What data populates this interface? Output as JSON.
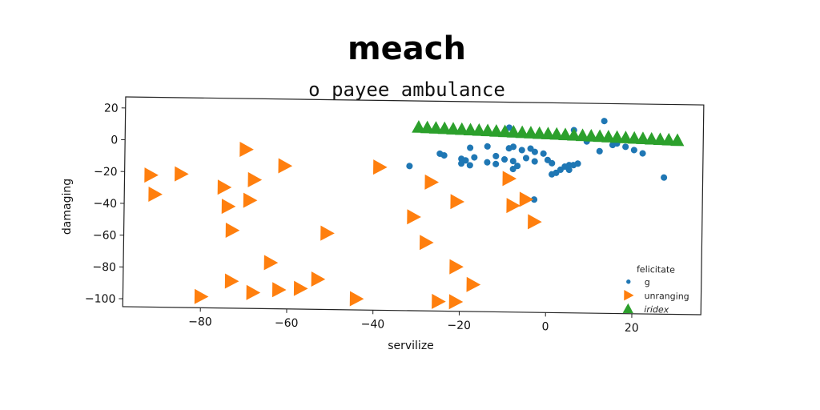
{
  "chart_data": {
    "type": "scatter",
    "title": "meach",
    "subtitle": "o payee ambulance",
    "xlabel": "servilize",
    "ylabel": "damaging",
    "xlim": [
      -98,
      36
    ],
    "ylim": [
      -105,
      27
    ],
    "xticks": [
      -80,
      -60,
      -40,
      -20,
      0,
      20
    ],
    "yticks": [
      20,
      0,
      -20,
      -40,
      -60,
      -80,
      -100
    ],
    "legend": {
      "title": "felicitate",
      "position": "lower-right"
    },
    "series": [
      {
        "name": "g",
        "marker": "circle",
        "color": "#1f77b4",
        "points": [
          [
            -32,
            -14
          ],
          [
            -25,
            -6
          ],
          [
            -24,
            -7
          ],
          [
            -20,
            -9
          ],
          [
            -20,
            -12
          ],
          [
            -18,
            -2
          ],
          [
            -19,
            -10
          ],
          [
            -18,
            -13
          ],
          [
            -17,
            -8
          ],
          [
            -14,
            -11
          ],
          [
            -12,
            -7
          ],
          [
            -12,
            -12
          ],
          [
            -10,
            -9
          ],
          [
            -9,
            -2
          ],
          [
            -8,
            -10
          ],
          [
            -8,
            -15
          ],
          [
            -7,
            -13
          ],
          [
            -6,
            -3
          ],
          [
            -5,
            -8
          ],
          [
            -4,
            -2
          ],
          [
            -3,
            -4
          ],
          [
            -3,
            -10
          ],
          [
            -1,
            -5
          ],
          [
            0,
            -9
          ],
          [
            1,
            -11
          ],
          [
            1,
            -18
          ],
          [
            2,
            -17
          ],
          [
            3,
            -15
          ],
          [
            4,
            -13
          ],
          [
            5,
            -12
          ],
          [
            5,
            -15
          ],
          [
            6,
            10
          ],
          [
            6,
            -12
          ],
          [
            7,
            -11
          ],
          [
            9,
            3
          ],
          [
            12,
            -3
          ],
          [
            13,
            16
          ],
          [
            15,
            1
          ],
          [
            16,
            2
          ],
          [
            18,
            0
          ],
          [
            20,
            -2
          ],
          [
            22,
            -4
          ],
          [
            27,
            -19
          ],
          [
            -3,
            -34
          ],
          [
            -8,
            -1
          ],
          [
            -14,
            -1
          ],
          [
            -9,
            11
          ]
        ]
      },
      {
        "name": "unranging",
        "marker": "triangle-right",
        "color": "#ff7f0e",
        "points": [
          [
            -92,
            -22
          ],
          [
            -91,
            -34
          ],
          [
            -85,
            -21
          ],
          [
            -80,
            -98
          ],
          [
            -75,
            -29
          ],
          [
            -74,
            -41
          ],
          [
            -73,
            -56
          ],
          [
            -73,
            -88
          ],
          [
            -70,
            -5
          ],
          [
            -69,
            -37
          ],
          [
            -68,
            -24
          ],
          [
            -68,
            -95
          ],
          [
            -64,
            -76
          ],
          [
            -62,
            -93
          ],
          [
            -61,
            -15
          ],
          [
            -57,
            -92
          ],
          [
            -53,
            -86
          ],
          [
            -51,
            -57
          ],
          [
            -44,
            -98
          ],
          [
            -39,
            -15
          ],
          [
            -31,
            -46
          ],
          [
            -28,
            -62
          ],
          [
            -27,
            -24
          ],
          [
            -25,
            -99
          ],
          [
            -21,
            -36
          ],
          [
            -21,
            -77
          ],
          [
            -21,
            -99
          ],
          [
            -17,
            -88
          ],
          [
            -9,
            -21
          ],
          [
            -8,
            -38
          ],
          [
            -5,
            -34
          ],
          [
            -3,
            -48
          ]
        ]
      },
      {
        "name": "iridex",
        "marker": "triangle-up",
        "color": "#2ca02c",
        "points": [
          [
            -30,
            10.4
          ],
          [
            -28,
            10.2
          ],
          [
            -26,
            10.0
          ],
          [
            -24,
            9.8
          ],
          [
            -22,
            9.6
          ],
          [
            -20,
            9.4
          ],
          [
            -18,
            9.2
          ],
          [
            -16,
            9.0
          ],
          [
            -14,
            8.8
          ],
          [
            -12,
            8.6
          ],
          [
            -10,
            8.4
          ],
          [
            -8,
            8.2
          ],
          [
            -6,
            8.0
          ],
          [
            -4,
            7.8
          ],
          [
            -2,
            7.6
          ],
          [
            0,
            7.4
          ],
          [
            2,
            7.2
          ],
          [
            4,
            7.0
          ],
          [
            6,
            6.8
          ],
          [
            8,
            6.6
          ],
          [
            10,
            6.4
          ],
          [
            12,
            6.2
          ],
          [
            14,
            6.0
          ],
          [
            16,
            5.8
          ],
          [
            18,
            5.6
          ],
          [
            20,
            5.4
          ],
          [
            22,
            5.2
          ],
          [
            24,
            5.0
          ],
          [
            26,
            4.8
          ],
          [
            28,
            4.6
          ],
          [
            30,
            4.4
          ]
        ]
      }
    ]
  }
}
